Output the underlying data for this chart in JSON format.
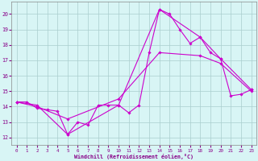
{
  "xlabel": "Windchill (Refroidissement éolien,°C)",
  "bg_color": "#d8f5f5",
  "grid_color": "#aacece",
  "line_color": "#cc00cc",
  "xlim": [
    -0.5,
    23.5
  ],
  "ylim": [
    11.5,
    20.8
  ],
  "xticks": [
    0,
    1,
    2,
    3,
    4,
    5,
    6,
    7,
    8,
    9,
    10,
    11,
    12,
    13,
    14,
    15,
    16,
    17,
    18,
    19,
    20,
    21,
    22,
    23
  ],
  "yticks": [
    12,
    13,
    14,
    15,
    16,
    17,
    18,
    19,
    20
  ],
  "line1_x": [
    0,
    1,
    2,
    3,
    4,
    5,
    6,
    7,
    8,
    9,
    10,
    11,
    12,
    13,
    14,
    15,
    16,
    17,
    18,
    19,
    20,
    21,
    22,
    23
  ],
  "line1_y": [
    14.3,
    14.3,
    13.9,
    13.8,
    13.7,
    12.2,
    13.0,
    12.8,
    14.1,
    14.1,
    14.1,
    13.6,
    14.1,
    17.5,
    20.3,
    20.0,
    19.0,
    18.1,
    18.5,
    17.5,
    17.1,
    14.7,
    14.8,
    15.1
  ],
  "line2_x": [
    0,
    2,
    5,
    10,
    14,
    18,
    20,
    23
  ],
  "line2_y": [
    14.3,
    14.1,
    12.2,
    14.1,
    20.3,
    18.5,
    17.1,
    15.1
  ],
  "line3_x": [
    0,
    2,
    5,
    10,
    14,
    18,
    20,
    23
  ],
  "line3_y": [
    14.3,
    14.0,
    13.2,
    14.5,
    17.5,
    17.3,
    16.8,
    15.0
  ]
}
